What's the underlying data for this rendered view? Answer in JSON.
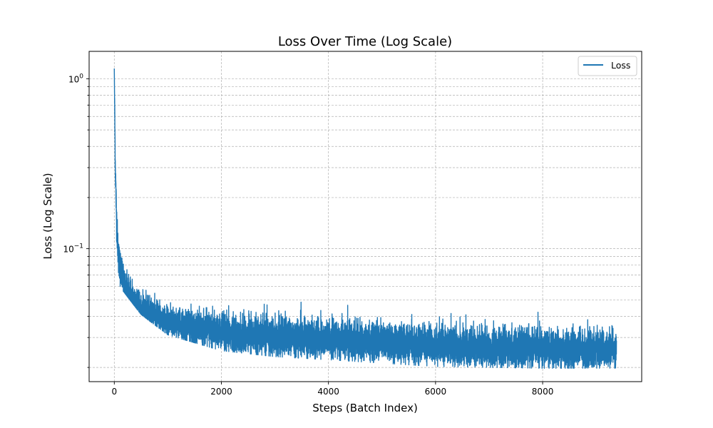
{
  "chart_data": {
    "type": "line",
    "title": "Loss Over Time (Log Scale)",
    "xlabel": "Steps (Batch Index)",
    "ylabel": "Loss (Log Scale)",
    "xlim": [
      -470,
      9850
    ],
    "ylim": [
      0.0165,
      1.45
    ],
    "yscale": "log",
    "grid": true,
    "legend_position": "top-right",
    "x_ticks": [
      0,
      2000,
      4000,
      6000,
      8000
    ],
    "x_tick_labels": [
      "0",
      "2000",
      "4000",
      "6000",
      "8000"
    ],
    "y_major_ticks": [
      0.1,
      1
    ],
    "y_major_tick_parts": [
      {
        "base": "10",
        "exp": "−1"
      },
      {
        "base": "10",
        "exp": "0"
      }
    ],
    "y_minor_ticks": [
      0.02,
      0.03,
      0.04,
      0.05,
      0.06,
      0.07,
      0.08,
      0.09,
      0.2,
      0.3,
      0.4,
      0.5,
      0.6,
      0.7,
      0.8,
      0.9
    ],
    "series": [
      {
        "name": "Loss",
        "color": "#1f77b4",
        "n_points": 9380,
        "trend": {
          "x": [
            0,
            10,
            20,
            40,
            60,
            80,
            100,
            150,
            200,
            300,
            400,
            500,
            700,
            1000,
            1500,
            2000,
            3000,
            4000,
            5000,
            6000,
            7000,
            8000,
            9000,
            9380
          ],
          "y": [
            1.15,
            0.55,
            0.3,
            0.16,
            0.11,
            0.09,
            0.08,
            0.068,
            0.058,
            0.052,
            0.048,
            0.045,
            0.042,
            0.037,
            0.034,
            0.032,
            0.03,
            0.029,
            0.028,
            0.027,
            0.026,
            0.0258,
            0.0255,
            0.0255
          ]
        },
        "band_upper": {
          "x": [
            100,
            500,
            1000,
            2000,
            3000,
            4000,
            6000,
            8000,
            9380
          ],
          "y": [
            0.1,
            0.06,
            0.048,
            0.043,
            0.04,
            0.038,
            0.035,
            0.034,
            0.033
          ]
        },
        "band_lower": {
          "x": [
            100,
            500,
            1000,
            2000,
            3000,
            4000,
            6000,
            8000,
            9380
          ],
          "y": [
            0.062,
            0.042,
            0.032,
            0.026,
            0.024,
            0.023,
            0.021,
            0.0205,
            0.0205
          ]
        }
      }
    ]
  }
}
